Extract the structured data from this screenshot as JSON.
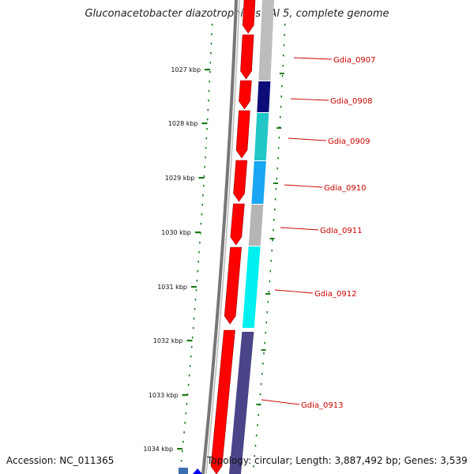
{
  "title": "Gluconacetobacter diazotrophicus PAl 5, complete genome",
  "accession": "Accession: NC_011365",
  "topology": "Topology: circular; Length: 3,887,492 bp; Genes: 3,539",
  "ruler": {
    "ticks": [
      "1027 kbp",
      "1028 kbp",
      "1029 kbp",
      "1030 kbp",
      "1031 kbp",
      "1032 kbp",
      "1033 kbp",
      "1034 kbp"
    ]
  },
  "genes": [
    {
      "label": "Gdia_0907",
      "color": "#bdbdbd"
    },
    {
      "label": "Gdia_0908",
      "color": "#0d0d7a"
    },
    {
      "label": "Gdia_0909",
      "color": "#22c7c7"
    },
    {
      "label": "Gdia_0910",
      "color": "#19a6f2"
    },
    {
      "label": "Gdia_0911",
      "color": "#b5b5b5"
    },
    {
      "label": "Gdia_0912",
      "color": "#00f0f0"
    },
    {
      "label": "Gdia_0913",
      "color": "#4a4488"
    }
  ],
  "colors": {
    "backbone": "#777777",
    "cds": "#ff0000",
    "label": "#cc0000",
    "tick": "#1a7a1a"
  }
}
